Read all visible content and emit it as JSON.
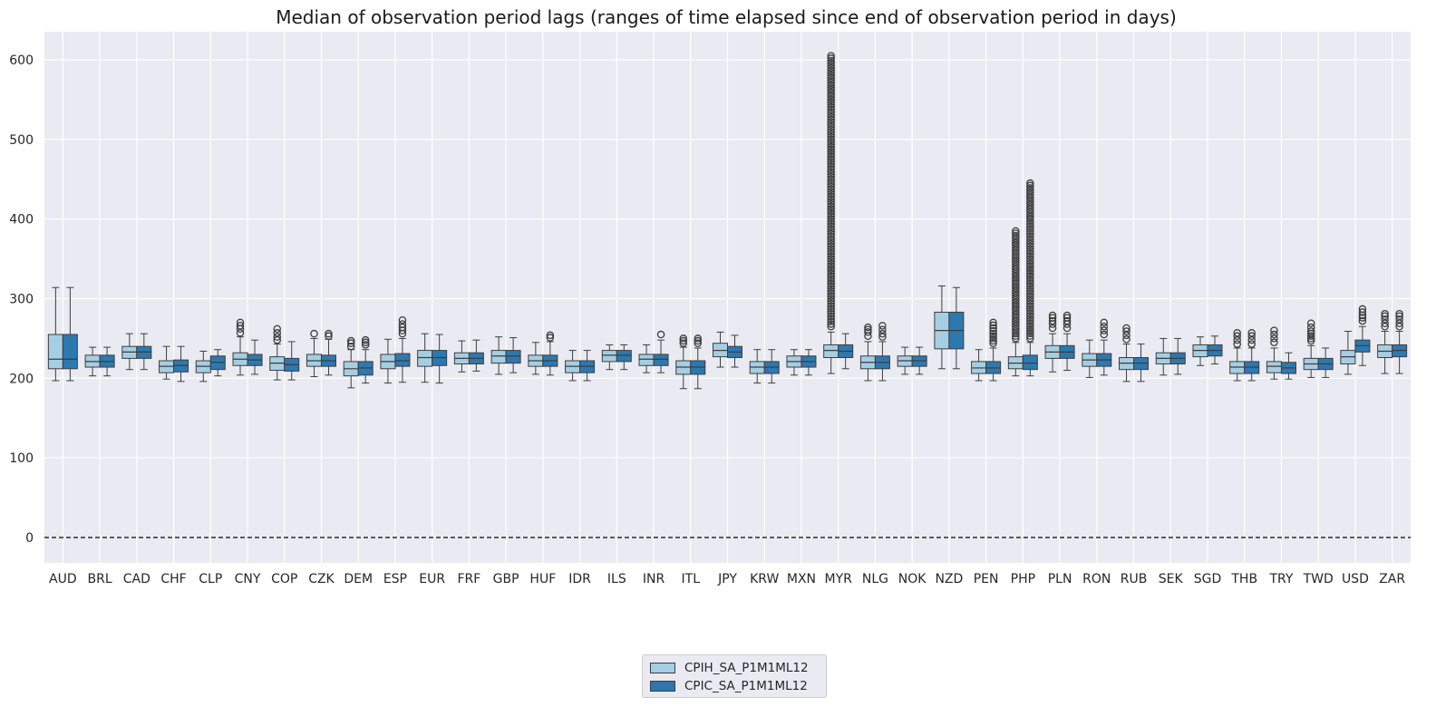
{
  "chart_data": {
    "type": "box",
    "title": "Median of observation period lags (ranges of time elapsed since end of observation period in days)",
    "xlabel": "",
    "ylabel": "",
    "ylim": [
      -30,
      635
    ],
    "yticks": [
      0,
      100,
      200,
      300,
      400,
      500,
      600
    ],
    "reference_line": {
      "y": 0,
      "style": "dashed",
      "color": "#000000"
    },
    "grid": true,
    "legend_position": "bottom-center",
    "categories": [
      "AUD",
      "BRL",
      "CAD",
      "CHF",
      "CLP",
      "CNY",
      "COP",
      "CZK",
      "DEM",
      "ESP",
      "EUR",
      "FRF",
      "GBP",
      "HUF",
      "IDR",
      "ILS",
      "INR",
      "ITL",
      "JPY",
      "KRW",
      "MXN",
      "MYR",
      "NLG",
      "NOK",
      "NZD",
      "PEN",
      "PHP",
      "PLN",
      "RON",
      "RUB",
      "SEK",
      "SGD",
      "THB",
      "TRY",
      "TWD",
      "USD",
      "ZAR"
    ],
    "series": [
      {
        "name": "CPIH_SA_P1M1ML12",
        "color": "#a6cee3",
        "boxes": [
          {
            "low": 197,
            "q1": 212,
            "med": 224,
            "q3": 255,
            "high": 314,
            "outliers": []
          },
          {
            "low": 203,
            "q1": 214,
            "med": 221,
            "q3": 229,
            "high": 239,
            "outliers": []
          },
          {
            "low": 211,
            "q1": 225,
            "med": 233,
            "q3": 240,
            "high": 256,
            "outliers": []
          },
          {
            "low": 199,
            "q1": 207,
            "med": 215,
            "q3": 222,
            "high": 240,
            "outliers": []
          },
          {
            "low": 196,
            "q1": 207,
            "med": 215,
            "q3": 222,
            "high": 234,
            "outliers": []
          },
          {
            "low": 204,
            "q1": 216,
            "med": 224,
            "q3": 232,
            "high": 252,
            "outliers": [
              257,
              262,
              266,
              270
            ]
          },
          {
            "low": 198,
            "q1": 210,
            "med": 219,
            "q3": 227,
            "high": 243,
            "outliers": [
              248,
              252,
              257,
              262
            ]
          },
          {
            "low": 202,
            "q1": 215,
            "med": 222,
            "q3": 230,
            "high": 250,
            "outliers": [
              256
            ]
          },
          {
            "low": 188,
            "q1": 203,
            "med": 212,
            "q3": 221,
            "high": 236,
            "outliers": [
              240,
              244,
              247
            ]
          },
          {
            "low": 194,
            "q1": 212,
            "med": 221,
            "q3": 230,
            "high": 249,
            "outliers": []
          },
          {
            "low": 195,
            "q1": 215,
            "med": 226,
            "q3": 235,
            "high": 256,
            "outliers": []
          },
          {
            "low": 208,
            "q1": 218,
            "med": 225,
            "q3": 232,
            "high": 247,
            "outliers": []
          },
          {
            "low": 205,
            "q1": 219,
            "med": 228,
            "q3": 235,
            "high": 252,
            "outliers": []
          },
          {
            "low": 205,
            "q1": 215,
            "med": 222,
            "q3": 229,
            "high": 245,
            "outliers": []
          },
          {
            "low": 197,
            "q1": 207,
            "med": 215,
            "q3": 222,
            "high": 235,
            "outliers": []
          },
          {
            "low": 211,
            "q1": 221,
            "med": 229,
            "q3": 235,
            "high": 242,
            "outliers": []
          },
          {
            "low": 207,
            "q1": 216,
            "med": 224,
            "q3": 230,
            "high": 242,
            "outliers": []
          },
          {
            "low": 187,
            "q1": 205,
            "med": 214,
            "q3": 222,
            "high": 239,
            "outliers": [
              244,
              247,
              250
            ]
          },
          {
            "low": 214,
            "q1": 227,
            "med": 235,
            "q3": 244,
            "high": 258,
            "outliers": []
          },
          {
            "low": 194,
            "q1": 206,
            "med": 214,
            "q3": 221,
            "high": 236,
            "outliers": []
          },
          {
            "low": 204,
            "q1": 214,
            "med": 221,
            "q3": 228,
            "high": 236,
            "outliers": []
          },
          {
            "low": 206,
            "q1": 226,
            "med": 235,
            "q3": 242,
            "high": 258,
            "outliers": [
              265,
              300,
              350,
              400,
              450,
              500,
              550,
              605
            ]
          },
          {
            "low": 197,
            "q1": 212,
            "med": 220,
            "q3": 228,
            "high": 246,
            "outliers": [
              253,
              258,
              264
            ]
          },
          {
            "low": 205,
            "q1": 215,
            "med": 222,
            "q3": 228,
            "high": 239,
            "outliers": []
          },
          {
            "low": 212,
            "q1": 237,
            "med": 260,
            "q3": 283,
            "high": 316,
            "outliers": []
          },
          {
            "low": 197,
            "q1": 206,
            "med": 213,
            "q3": 221,
            "high": 236,
            "outliers": []
          },
          {
            "low": 203,
            "q1": 212,
            "med": 219,
            "q3": 227,
            "high": 245,
            "outliers": [
              250,
              280,
              310,
              340,
              385
            ]
          },
          {
            "low": 208,
            "q1": 225,
            "med": 233,
            "q3": 241,
            "high": 256,
            "outliers": [
              263,
              268,
              272,
              276,
              279
            ]
          },
          {
            "low": 201,
            "q1": 215,
            "med": 223,
            "q3": 231,
            "high": 248,
            "outliers": []
          },
          {
            "low": 196,
            "q1": 211,
            "med": 219,
            "q3": 226,
            "high": 243,
            "outliers": [
              249,
              254,
              259,
              263
            ]
          },
          {
            "low": 204,
            "q1": 218,
            "med": 225,
            "q3": 232,
            "high": 250,
            "outliers": []
          },
          {
            "low": 216,
            "q1": 227,
            "med": 235,
            "q3": 242,
            "high": 252,
            "outliers": []
          },
          {
            "low": 197,
            "q1": 206,
            "med": 214,
            "q3": 221,
            "high": 238,
            "outliers": [
              243,
              248,
              253,
              257
            ]
          },
          {
            "low": 199,
            "q1": 207,
            "med": 215,
            "q3": 221,
            "high": 238,
            "outliers": [
              245,
              250,
              255,
              260
            ]
          },
          {
            "low": 201,
            "q1": 211,
            "med": 218,
            "q3": 225,
            "high": 241,
            "outliers": [
              247,
              253,
              259,
              264,
              269
            ]
          },
          {
            "low": 205,
            "q1": 218,
            "med": 227,
            "q3": 235,
            "high": 259,
            "outliers": []
          },
          {
            "low": 206,
            "q1": 226,
            "med": 234,
            "q3": 242,
            "high": 259,
            "outliers": [
              265,
              269,
              274,
              278,
              281
            ]
          }
        ]
      },
      {
        "name": "CPIC_SA_P1M1ML12",
        "color": "#2e78b0",
        "boxes": [
          {
            "low": 197,
            "q1": 212,
            "med": 224,
            "q3": 255,
            "high": 314,
            "outliers": []
          },
          {
            "low": 203,
            "q1": 214,
            "med": 221,
            "q3": 229,
            "high": 239,
            "outliers": []
          },
          {
            "low": 211,
            "q1": 225,
            "med": 233,
            "q3": 240,
            "high": 256,
            "outliers": []
          },
          {
            "low": 196,
            "q1": 208,
            "med": 216,
            "q3": 223,
            "high": 240,
            "outliers": []
          },
          {
            "low": 203,
            "q1": 211,
            "med": 220,
            "q3": 228,
            "high": 236,
            "outliers": []
          },
          {
            "low": 205,
            "q1": 216,
            "med": 223,
            "q3": 230,
            "high": 248,
            "outliers": []
          },
          {
            "low": 198,
            "q1": 209,
            "med": 217,
            "q3": 225,
            "high": 246,
            "outliers": []
          },
          {
            "low": 204,
            "q1": 215,
            "med": 222,
            "q3": 229,
            "high": 249,
            "outliers": [
              253,
              256
            ]
          },
          {
            "low": 194,
            "q1": 204,
            "med": 213,
            "q3": 221,
            "high": 236,
            "outliers": [
              242,
              245,
              248
            ]
          },
          {
            "low": 195,
            "q1": 215,
            "med": 222,
            "q3": 231,
            "high": 250,
            "outliers": [
              256,
              260,
              264,
              268,
              273
            ]
          },
          {
            "low": 194,
            "q1": 216,
            "med": 226,
            "q3": 235,
            "high": 255,
            "outliers": []
          },
          {
            "low": 209,
            "q1": 218,
            "med": 225,
            "q3": 232,
            "high": 248,
            "outliers": []
          },
          {
            "low": 207,
            "q1": 219,
            "med": 228,
            "q3": 235,
            "high": 251,
            "outliers": []
          },
          {
            "low": 204,
            "q1": 215,
            "med": 222,
            "q3": 229,
            "high": 246,
            "outliers": [
              251,
              254
            ]
          },
          {
            "low": 197,
            "q1": 207,
            "med": 215,
            "q3": 222,
            "high": 235,
            "outliers": []
          },
          {
            "low": 211,
            "q1": 221,
            "med": 229,
            "q3": 235,
            "high": 242,
            "outliers": []
          },
          {
            "low": 207,
            "q1": 216,
            "med": 224,
            "q3": 230,
            "high": 248,
            "outliers": [
              255
            ]
          },
          {
            "low": 187,
            "q1": 205,
            "med": 214,
            "q3": 222,
            "high": 238,
            "outliers": [
              244,
              247,
              250
            ]
          },
          {
            "low": 214,
            "q1": 226,
            "med": 233,
            "q3": 240,
            "high": 254,
            "outliers": []
          },
          {
            "low": 194,
            "q1": 206,
            "med": 214,
            "q3": 221,
            "high": 236,
            "outliers": []
          },
          {
            "low": 204,
            "q1": 214,
            "med": 221,
            "q3": 228,
            "high": 236,
            "outliers": []
          },
          {
            "low": 212,
            "q1": 226,
            "med": 234,
            "q3": 242,
            "high": 256,
            "outliers": []
          },
          {
            "low": 197,
            "q1": 212,
            "med": 220,
            "q3": 228,
            "high": 246,
            "outliers": [
              252,
              256,
              261,
              266
            ]
          },
          {
            "low": 205,
            "q1": 215,
            "med": 222,
            "q3": 228,
            "high": 239,
            "outliers": []
          },
          {
            "low": 212,
            "q1": 237,
            "med": 260,
            "q3": 283,
            "high": 314,
            "outliers": []
          },
          {
            "low": 197,
            "q1": 206,
            "med": 213,
            "q3": 221,
            "high": 238,
            "outliers": [
              244,
              250,
              256,
              263,
              270
            ]
          },
          {
            "low": 203,
            "q1": 211,
            "med": 219,
            "q3": 229,
            "high": 245,
            "outliers": [
              250,
              300,
              350,
              400,
              445
            ]
          },
          {
            "low": 210,
            "q1": 225,
            "med": 233,
            "q3": 241,
            "high": 256,
            "outliers": [
              263,
              268,
              272,
              276,
              279
            ]
          },
          {
            "low": 204,
            "q1": 215,
            "med": 223,
            "q3": 231,
            "high": 248,
            "outliers": [
              255,
              260,
              265,
              270
            ]
          },
          {
            "low": 196,
            "q1": 211,
            "med": 219,
            "q3": 226,
            "high": 243,
            "outliers": []
          },
          {
            "low": 205,
            "q1": 218,
            "med": 225,
            "q3": 232,
            "high": 250,
            "outliers": []
          },
          {
            "low": 218,
            "q1": 228,
            "med": 235,
            "q3": 242,
            "high": 253,
            "outliers": []
          },
          {
            "low": 197,
            "q1": 206,
            "med": 214,
            "q3": 221,
            "high": 238,
            "outliers": [
              243,
              248,
              253,
              257
            ]
          },
          {
            "low": 199,
            "q1": 206,
            "med": 213,
            "q3": 220,
            "high": 232,
            "outliers": []
          },
          {
            "low": 201,
            "q1": 211,
            "med": 218,
            "q3": 225,
            "high": 238,
            "outliers": []
          },
          {
            "low": 216,
            "q1": 233,
            "med": 241,
            "q3": 248,
            "high": 265,
            "outliers": [
              272,
              276,
              279,
              283,
              287
            ]
          },
          {
            "low": 206,
            "q1": 227,
            "med": 235,
            "q3": 242,
            "high": 259,
            "outliers": [
              265,
              269,
              274,
              278,
              281
            ]
          }
        ]
      }
    ]
  }
}
